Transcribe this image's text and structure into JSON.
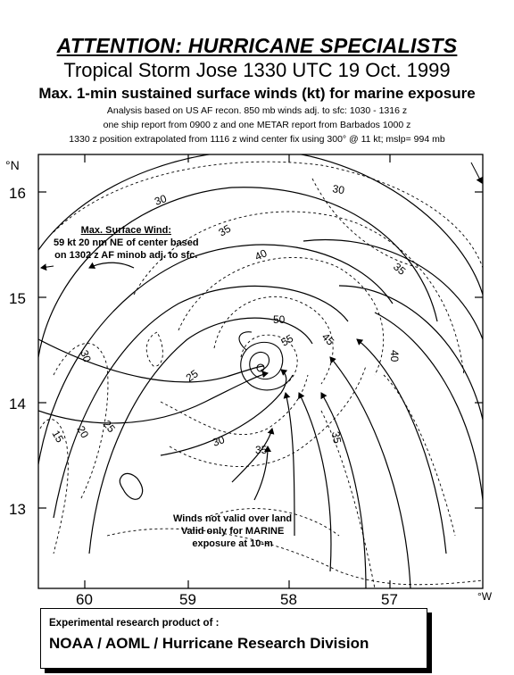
{
  "header": {
    "line1": "ATTENTION: HURRICANE SPECIALISTS",
    "line2": "Tropical Storm Jose  1330 UTC 19 Oct. 1999",
    "line3": "Max. 1-min sustained surface winds (kt) for marine exposure",
    "line4": "Analysis based on US AF recon. 850 mb winds adj. to sfc:  1030 - 1316 z",
    "line5": "one ship report from 0900 z and one METAR report from Barbados 1000 z",
    "line6": "1330 z position extrapolated from  1116 z wind center fix using  300° @ 11 kt; mslp= 994 mb"
  },
  "axes": {
    "lat_labels": [
      "16",
      "15",
      "14",
      "13"
    ],
    "lon_labels": [
      "60",
      "59",
      "58",
      "57"
    ],
    "north_symbol": "°N",
    "west_symbol": "°W"
  },
  "contour_labels": [
    "30",
    "35",
    "40",
    "35",
    "30",
    "45",
    "50",
    "55",
    "40",
    "30",
    "25",
    "20",
    "15",
    "25",
    "30",
    "35",
    "35"
  ],
  "annotations": {
    "max_wind": [
      "Max. Surface Wind:",
      "59 kt  20 nm NE of center based",
      "on 1302 z AF minob adj. to sfc."
    ],
    "land_note": [
      "Winds not valid over land",
      "Valid only for MARINE",
      "exposure at 10-m"
    ]
  },
  "footer": {
    "line1": "Experimental research product of :",
    "line2": "NOAA / AOML / Hurricane Research Division"
  },
  "colors": {
    "ink": "#000000",
    "paper": "#ffffff"
  }
}
